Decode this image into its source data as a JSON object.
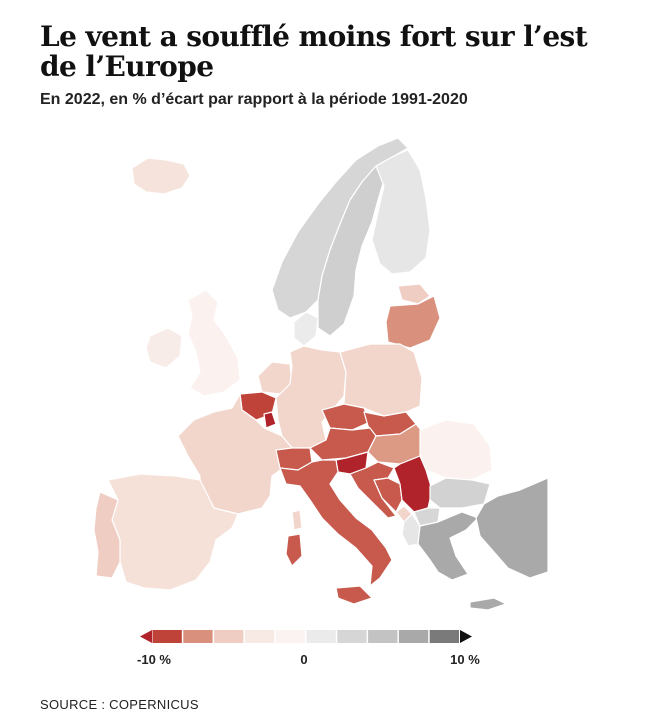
{
  "title": "Le vent a soufflé moins fort sur l’est de l’Europe",
  "subtitle": "En 2022, en % d’écart par rapport à la période 1991-2020",
  "source": "SOURCE : COPERNICUS",
  "legend": {
    "labels": [
      "-10 %",
      "0",
      "10 %"
    ],
    "colors": [
      "#c0433a",
      "#d9907c",
      "#efcdc3",
      "#f7e9e4",
      "#fbf3f1",
      "#ebebeb",
      "#d6d6d6",
      "#c3c3c3",
      "#a9a9a9",
      "#7a7a7a"
    ],
    "arrow_left_color": "#b0232a",
    "arrow_right_color": "#111111"
  },
  "regions": [
    {
      "name": "iceland",
      "color": "#f6e3db"
    },
    {
      "name": "norway",
      "color": "#d6d6d6"
    },
    {
      "name": "sweden",
      "color": "#cfcfcf"
    },
    {
      "name": "finland",
      "color": "#e6e6e6"
    },
    {
      "name": "estonia",
      "color": "#efcdc3"
    },
    {
      "name": "latvia-lithuania",
      "color": "#d9907c"
    },
    {
      "name": "denmark",
      "color": "#ebebeb"
    },
    {
      "name": "ireland",
      "color": "#f7ece8"
    },
    {
      "name": "united-kingdom",
      "color": "#fbf2ef"
    },
    {
      "name": "netherlands",
      "color": "#f2d6cc"
    },
    {
      "name": "belgium",
      "color": "#c0433a"
    },
    {
      "name": "luxembourg",
      "color": "#b0232a"
    },
    {
      "name": "germany",
      "color": "#f2d6cc"
    },
    {
      "name": "poland",
      "color": "#f2d6cc"
    },
    {
      "name": "france",
      "color": "#f2d6cc"
    },
    {
      "name": "switzerland",
      "color": "#c75a4d"
    },
    {
      "name": "austria",
      "color": "#c75a4d"
    },
    {
      "name": "czechia",
      "color": "#c75a4d"
    },
    {
      "name": "slovakia",
      "color": "#c75a4d"
    },
    {
      "name": "hungary",
      "color": "#dc9a85"
    },
    {
      "name": "romania",
      "color": "#fbf1ee"
    },
    {
      "name": "slovenia",
      "color": "#b0232a"
    },
    {
      "name": "croatia",
      "color": "#c75a4d"
    },
    {
      "name": "bosnia",
      "color": "#c75a4d"
    },
    {
      "name": "serbia",
      "color": "#b0232a"
    },
    {
      "name": "italy",
      "color": "#c75a4d"
    },
    {
      "name": "sardinia",
      "color": "#c75a4d"
    },
    {
      "name": "sicily",
      "color": "#c75a4d"
    },
    {
      "name": "corsica",
      "color": "#f2d6cc"
    },
    {
      "name": "spain",
      "color": "#f6e1d9"
    },
    {
      "name": "portugal",
      "color": "#efcdc3"
    },
    {
      "name": "bulgaria",
      "color": "#d2d2d2"
    },
    {
      "name": "north-macedonia",
      "color": "#d6d6d6"
    },
    {
      "name": "albania",
      "color": "#e6e6e6"
    },
    {
      "name": "montenegro",
      "color": "#f2d6cc"
    },
    {
      "name": "greece",
      "color": "#a9a9a9"
    },
    {
      "name": "turkey",
      "color": "#a9a9a9"
    },
    {
      "name": "cyprus-crete",
      "color": "#a9a9a9"
    }
  ]
}
